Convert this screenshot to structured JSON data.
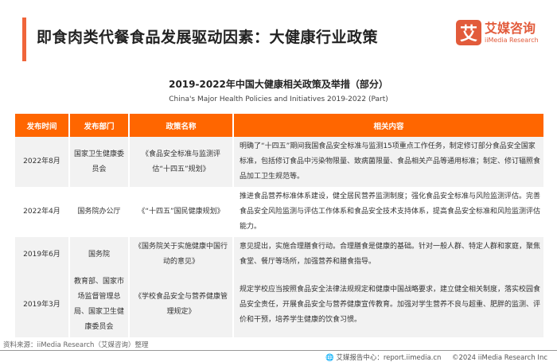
{
  "header": {
    "title": "即食肉类代餐食品发展驱动因素：大健康行业政策",
    "logo_mark": "艾",
    "logo_cn": "艾媒咨询",
    "logo_en": "iiMedia Research",
    "accent": "#f0653a"
  },
  "table_title": "2019-2022年中国大健康相关政策及举措（部分）",
  "table_subtitle": "China's Major Health Policies and Initiatives 2019-2022 (Part)",
  "table": {
    "header_color": "#ff6600",
    "columns": [
      "发布时间",
      "发布部门",
      "政策名称",
      "相关内容"
    ],
    "rows": [
      {
        "date": "2022年8月",
        "dept": "国家卫生健康委员会",
        "policy": "《食品安全标准与监测评估“十四五”规划》",
        "content": "明确了“十四五”期间我国食品安全标准与监测15项重点工作任务，制定修订部分食品安全国家标准，包括修订食品中污染物限量、致病菌限量、食品相关产品等通用标准；制定、修订辐照食品加工卫生规范等。"
      },
      {
        "date": "2022年4月",
        "dept": "国务院办公厅",
        "policy": "《“十四五”国民健康规划》",
        "content": "推进食品营养标准体系建设，健全居民营养监测制度；强化食品安全标准与风险监测评估。完善食品安全风险监测与评估工作体系和食品安全技术支持体系，提高食品安全标准和风险监测评估能力。"
      },
      {
        "date": "2019年6月",
        "dept": "国务院",
        "policy": "《国务院关于实施健康中国行动的意见》",
        "content": "意见提出，实施合理膳食行动。合理膳食是健康的基础。针对一般人群、特定人群和家庭，聚焦食堂、餐厅等场所，加强营养和膳食指导。"
      },
      {
        "date": "2019年3月",
        "dept": "教育部、国家市场监督管理总局、国家卫生健康委员会",
        "policy": "《学校食品安全与营养健康管理规定》",
        "content": "规定学校应当按照食品安全法律法规规定和健康中国战略要求，建立健全相关制度，落实校园食品安全责任，开展食品安全与营养健康宣传教育。加强对学生营养不良与超重、肥胖的监测、评价和干预，培养学生健康的饮食习惯。"
      }
    ]
  },
  "footer": {
    "source": "资料来源：iiMedia Research（艾媒咨询）整理",
    "report_center": "艾媒报告中心：report.iimedia.cn",
    "copyright": "©2024  iiMedia Research  Inc"
  }
}
